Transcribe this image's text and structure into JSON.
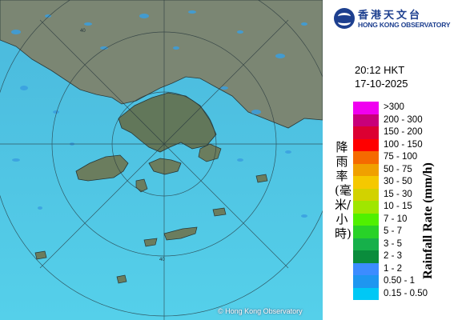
{
  "map": {
    "copyright": "© Hong Kong Observatory",
    "range_ring_label": "40",
    "colors": {
      "sea": "#48c8e8",
      "land": "#6f7f6a",
      "echo": "#3a9fe0"
    }
  },
  "logo": {
    "name_zh": "香港天文台",
    "name_en": "HONG KONG OBSERVATORY"
  },
  "timestamp": {
    "time": "20:12 HKT",
    "date": "17-10-2025"
  },
  "legend": {
    "title_zh": "降雨率(毫米/小時)",
    "title_en": "Rainfall Rate (mm/h)",
    "items": [
      {
        "label": ">300",
        "color": "#f000f0"
      },
      {
        "label": "200 - 300",
        "color": "#c8007a"
      },
      {
        "label": "150 - 200",
        "color": "#dc0032"
      },
      {
        "label": "100 - 150",
        "color": "#ff0000"
      },
      {
        "label": "75 - 100",
        "color": "#f56a00"
      },
      {
        "label": "50 - 75",
        "color": "#f0a000"
      },
      {
        "label": "30 - 50",
        "color": "#f5c800"
      },
      {
        "label": "15 - 30",
        "color": "#d2d200"
      },
      {
        "label": "10 - 15",
        "color": "#a0e600"
      },
      {
        "label": "7 - 10",
        "color": "#50f000"
      },
      {
        "label": "5 - 7",
        "color": "#28d228"
      },
      {
        "label": "3 - 5",
        "color": "#16b04a"
      },
      {
        "label": "2 - 3",
        "color": "#0a8c3c"
      },
      {
        "label": "1 - 2",
        "color": "#3c8cff"
      },
      {
        "label": "0.50 - 1",
        "color": "#1e96f0"
      },
      {
        "label": "0.15 - 0.50",
        "color": "#00c8f5"
      }
    ]
  }
}
